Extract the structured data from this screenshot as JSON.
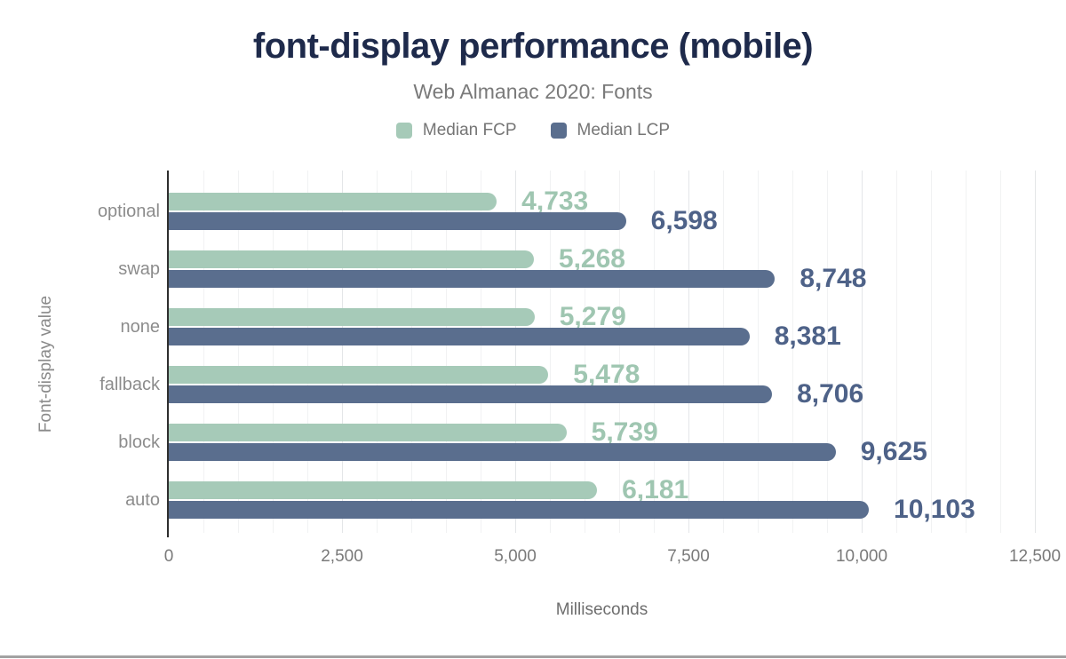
{
  "title": "font-display performance (mobile)",
  "subtitle": "Web Almanac 2020: Fonts",
  "legend": [
    {
      "label": "Median FCP",
      "color": "#a6cab8"
    },
    {
      "label": "Median LCP",
      "color": "#5a6e8e"
    }
  ],
  "chart_data": {
    "type": "bar",
    "orientation": "horizontal",
    "title": "font-display performance (mobile)",
    "subtitle": "Web Almanac 2020: Fonts",
    "categories": [
      "optional",
      "swap",
      "none",
      "fallback",
      "block",
      "auto"
    ],
    "series": [
      {
        "name": "Median FCP",
        "color": "#a6cab8",
        "label_color": "#9fc6b1",
        "values": [
          4733,
          5268,
          5279,
          5478,
          5739,
          6181
        ],
        "labels": [
          "4,733",
          "5,268",
          "5,279",
          "5,478",
          "5,739",
          "6,181"
        ]
      },
      {
        "name": "Median LCP",
        "color": "#5a6e8e",
        "label_color": "#4e6288",
        "values": [
          6598,
          8748,
          8381,
          8706,
          9625,
          10103
        ],
        "labels": [
          "6,598",
          "8,748",
          "8,381",
          "8,706",
          "9,625",
          "10,103"
        ]
      }
    ],
    "xlabel": "Milliseconds",
    "ylabel": "Font-display value",
    "xlim": [
      0,
      12500
    ],
    "x_tick_values": [
      0,
      2500,
      5000,
      7500,
      10000,
      12500
    ],
    "x_ticks": [
      "0",
      "2,500",
      "5,000",
      "7,500",
      "10,000",
      "12,500"
    ],
    "grid": {
      "minor_step": 500,
      "major_step": 2500,
      "horizontal": false
    },
    "legend_position": "top"
  },
  "colors": {
    "title": "#1e2a4b",
    "axis": "#2e2e2e",
    "bottom_divider": "#a2a2a2"
  }
}
